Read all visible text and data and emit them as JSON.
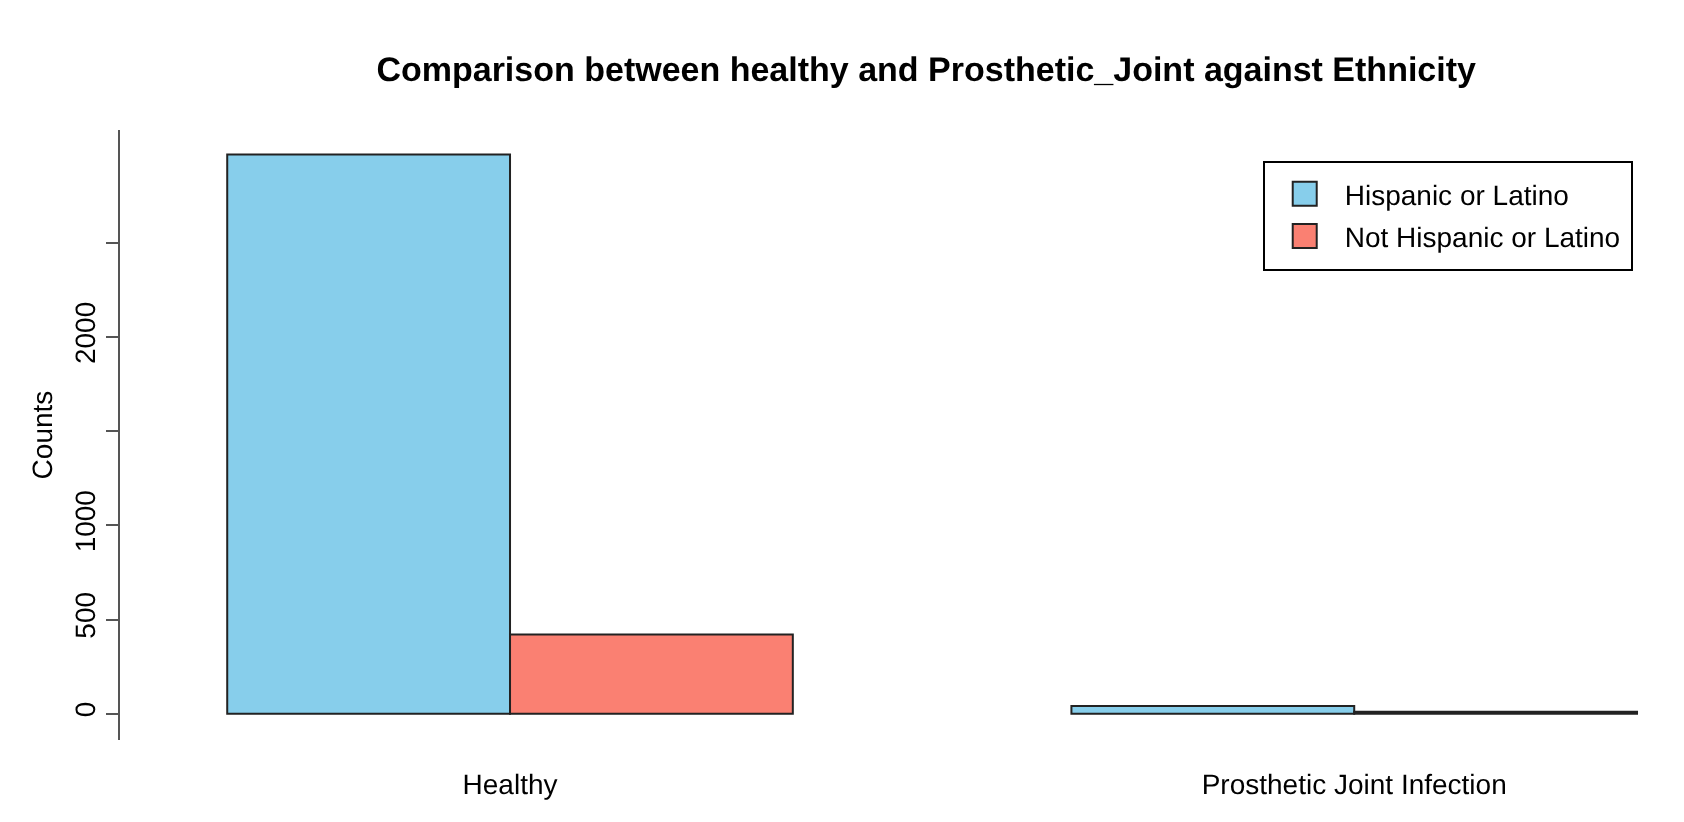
{
  "chart_data": {
    "type": "bar",
    "title": "Comparison between healthy and Prosthetic_Joint against Ethnicity",
    "ylabel": "Counts",
    "categories": [
      "Healthy",
      "Prosthetic Joint Infection"
    ],
    "series": [
      {
        "name": "Hispanic or Latino",
        "color": "#87ceeb",
        "values": [
          2970,
          40
        ]
      },
      {
        "name": "Not Hispanic or Latino",
        "color": "#fa8072",
        "values": [
          420,
          10
        ]
      }
    ],
    "ylim": [
      -140,
      3100
    ],
    "yticks": [
      0,
      500,
      1000,
      {
        "value": 1500,
        "label": null
      },
      2000,
      {
        "value": 2500,
        "label": null
      }
    ],
    "grid": false,
    "legend": "top right"
  }
}
